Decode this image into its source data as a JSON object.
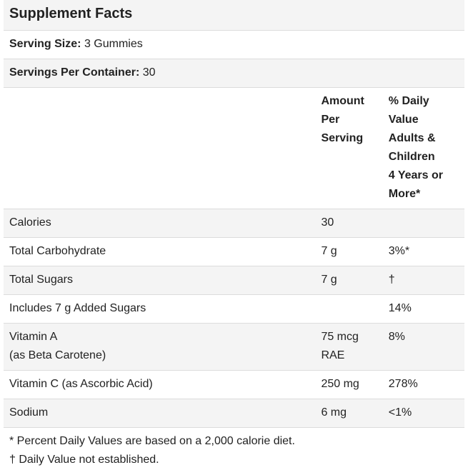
{
  "title": "Supplement Facts",
  "serving_size": {
    "label": "Serving Size:",
    "value": "3 Gummies"
  },
  "servings_per_container": {
    "label": "Servings Per Container:",
    "value": "30"
  },
  "headers": {
    "amount": [
      "Amount",
      "Per",
      "Serving"
    ],
    "daily_value": [
      "% Daily",
      "Value",
      "Adults &",
      "Children",
      "4 Years or",
      "More*"
    ]
  },
  "rows": [
    {
      "name": "Calories",
      "amount": "30",
      "dv": ""
    },
    {
      "name": "Total Carbohydrate",
      "amount": "7 g",
      "dv": "3%*"
    },
    {
      "name": "Total Sugars",
      "amount": "7 g",
      "dv": "†"
    },
    {
      "name": "Includes 7 g Added Sugars",
      "amount": "",
      "dv": "14%"
    },
    {
      "name": "Vitamin A",
      "name2": "(as Beta Carotene)",
      "amount": "75 mcg",
      "amount2": "RAE",
      "dv": "8%"
    },
    {
      "name": "Vitamin C (as Ascorbic Acid)",
      "amount": "250 mg",
      "dv": "278%"
    },
    {
      "name": "Sodium",
      "amount": "6 mg",
      "dv": "<1%"
    }
  ],
  "footnotes": [
    "* Percent Daily Values are based on a 2,000 calorie diet.",
    "† Daily Value not established."
  ]
}
